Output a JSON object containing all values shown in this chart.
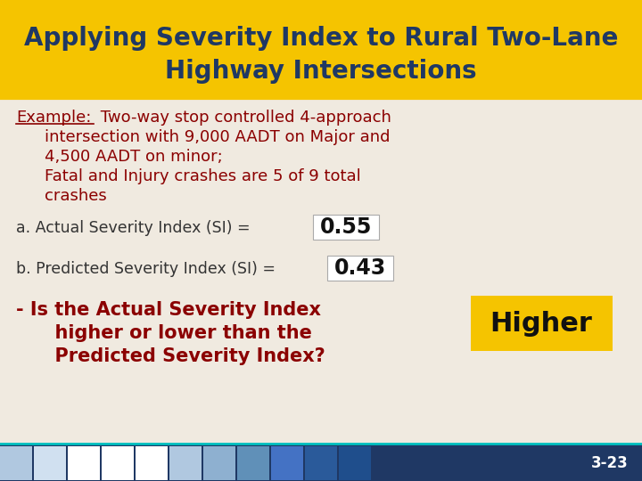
{
  "title_line1": "Applying Severity Index to Rural Two-Lane",
  "title_line2": "Highway Intersections",
  "title_bg_color": "#F5C400",
  "title_text_color": "#1F3864",
  "body_bg_color": "#F0EAE0",
  "body_text_color": "#8B0000",
  "line_a_text": "a. Actual Severity Index (SI) = ",
  "line_a_value": "0.55",
  "line_b_text": "b. Predicted Severity Index (SI) = ",
  "line_b_value": "0.43",
  "question_line1": "- Is the Actual Severity Index",
  "question_line2": "      higher or lower than the",
  "question_line3": "      Predicted Severity Index?",
  "answer": "Higher",
  "answer_bg_color": "#F5C400",
  "answer_text_color": "#111111",
  "footer_bg_color": "#1F3864",
  "footer_text": "3-23",
  "footer_text_color": "#FFFFFF",
  "value_box_color": "#FFFFFF",
  "normal_text_color": "#333333",
  "gold_line_color": "#F5C400",
  "footer_colors": [
    "#B0C8E0",
    "#D0E0F0",
    "#FFFFFF",
    "#FFFFFF",
    "#FFFFFF",
    "#B0C8E0",
    "#8EB0D0",
    "#6090B8",
    "#4472C4",
    "#2A5A9A",
    "#1F4E8C"
  ],
  "cyan_line_color": "#00BFBF"
}
